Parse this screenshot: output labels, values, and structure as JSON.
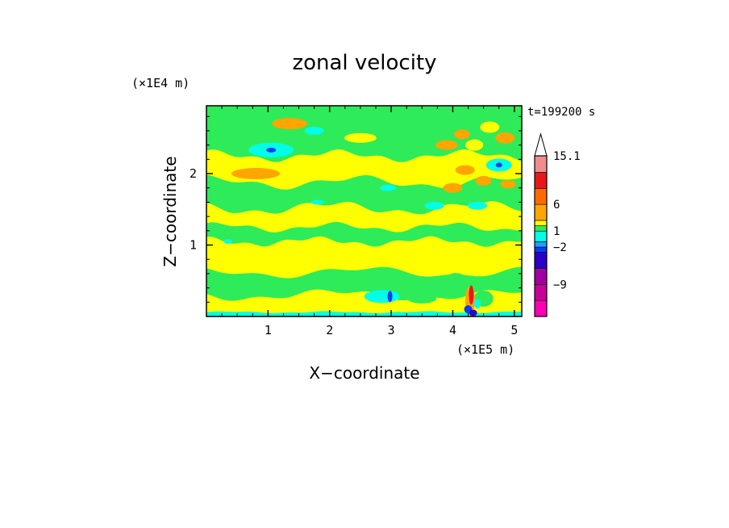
{
  "chart_data": {
    "type": "heatmap",
    "title": "zonal velocity",
    "xlabel": "X−coordinate",
    "ylabel": "Z−coordinate",
    "x_scale_label": "(×1E5 m)",
    "y_scale_label": "(×1E4 m)",
    "time_label": "t=199200 s",
    "xlim": [
      0,
      5.12
    ],
    "ylim": [
      0,
      2.95
    ],
    "x_ticks": [
      1,
      2,
      3,
      4,
      5
    ],
    "y_ticks": [
      1,
      2
    ],
    "x_tick_labels": [
      "1",
      "2",
      "3",
      "4",
      "5"
    ],
    "y_tick_labels": [
      "1",
      "2"
    ],
    "colorbar": {
      "levels": [
        -15,
        -12,
        -9,
        -6,
        -3,
        -2,
        -1,
        1,
        2,
        3,
        6,
        9,
        12,
        15.1
      ],
      "colors": [
        "#ff00b4",
        "#c8009b",
        "#a000a0",
        "#2a00c8",
        "#0a3cff",
        "#1ea0ff",
        "#00ffe6",
        "#2eeb5a",
        "#ffff00",
        "#ffa500",
        "#ff6a00",
        "#e81818",
        "#f08c8c",
        "#f8c8c8"
      ],
      "labels": [
        {
          "value": 15.1,
          "text": "15.1"
        },
        {
          "value": 6,
          "text": "6"
        },
        {
          "value": 1,
          "text": "1"
        },
        {
          "value": -2,
          "text": "−2"
        },
        {
          "value": -9,
          "text": "−9"
        }
      ],
      "max_arrow": true
    },
    "field_regions": [
      {
        "level": "green",
        "x": [
          0.0,
          5.12
        ],
        "z": [
          2.3,
          2.95
        ]
      },
      {
        "level": "yellow",
        "x": [
          0.0,
          5.12
        ],
        "z": [
          1.9,
          2.3
        ]
      },
      {
        "level": "green",
        "x": [
          0.0,
          5.12
        ],
        "z": [
          1.55,
          1.9
        ]
      },
      {
        "level": "yellow",
        "x": [
          0.0,
          5.12
        ],
        "z": [
          0.65,
          1.55
        ]
      },
      {
        "level": "green",
        "x": [
          0.0,
          5.12
        ],
        "z": [
          0.3,
          0.65
        ]
      },
      {
        "level": "yellow",
        "x": [
          0.0,
          5.12
        ],
        "z": [
          0.05,
          0.3
        ]
      },
      {
        "level": "cyan",
        "x": [
          0.0,
          5.12
        ],
        "z": [
          0.0,
          0.05
        ]
      }
    ],
    "minimum_location": {
      "x": 4.3,
      "z": 0.1
    },
    "maximum_location": {
      "x": 4.3,
      "z": 0.35
    }
  }
}
